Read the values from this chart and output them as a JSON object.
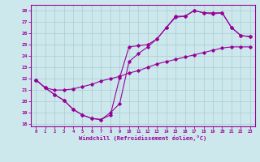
{
  "xlabel": "Windchill (Refroidissement éolien,°C)",
  "xlim_min": -0.5,
  "xlim_max": 23.5,
  "ylim_min": 17.8,
  "ylim_max": 28.5,
  "yticks": [
    18,
    19,
    20,
    21,
    22,
    23,
    24,
    25,
    26,
    27,
    28
  ],
  "xticks": [
    0,
    1,
    2,
    3,
    4,
    5,
    6,
    7,
    8,
    9,
    10,
    11,
    12,
    13,
    14,
    15,
    16,
    17,
    18,
    19,
    20,
    21,
    22,
    23
  ],
  "line_color": "#990099",
  "bg_color": "#cce8ec",
  "grid_color": "#aaccd0",
  "line1_x": [
    0,
    1,
    2,
    3,
    4,
    5,
    6,
    7,
    8,
    9,
    10,
    11,
    12,
    13,
    14,
    15,
    16,
    17,
    18,
    19,
    20,
    21,
    22,
    23
  ],
  "line1_y": [
    21.9,
    21.2,
    21.0,
    21.0,
    21.1,
    21.3,
    21.5,
    21.8,
    22.0,
    22.2,
    22.5,
    22.7,
    23.0,
    23.3,
    23.5,
    23.7,
    23.9,
    24.1,
    24.3,
    24.5,
    24.7,
    24.8,
    24.8,
    24.8
  ],
  "line2_x": [
    0,
    1,
    2,
    3,
    4,
    5,
    6,
    7,
    8,
    9,
    10,
    11,
    12,
    13,
    14,
    15,
    16,
    17,
    18,
    19,
    20,
    21,
    22,
    23
  ],
  "line2_y": [
    21.9,
    21.2,
    20.6,
    20.1,
    19.3,
    18.8,
    18.5,
    18.4,
    18.8,
    22.1,
    24.8,
    24.9,
    25.0,
    25.5,
    26.5,
    27.5,
    27.5,
    28.0,
    27.8,
    27.8,
    27.8,
    26.5,
    25.8,
    25.7
  ],
  "line3_x": [
    0,
    1,
    2,
    3,
    4,
    5,
    6,
    7,
    8,
    9,
    10,
    11,
    12,
    13,
    14,
    15,
    16,
    17,
    18,
    19,
    20,
    21,
    22,
    23
  ],
  "line3_y": [
    21.9,
    21.2,
    20.6,
    20.1,
    19.3,
    18.8,
    18.5,
    18.4,
    19.0,
    19.8,
    23.5,
    24.2,
    24.8,
    25.5,
    26.5,
    27.4,
    27.5,
    28.0,
    27.8,
    27.7,
    27.8,
    26.5,
    25.8,
    25.7
  ]
}
